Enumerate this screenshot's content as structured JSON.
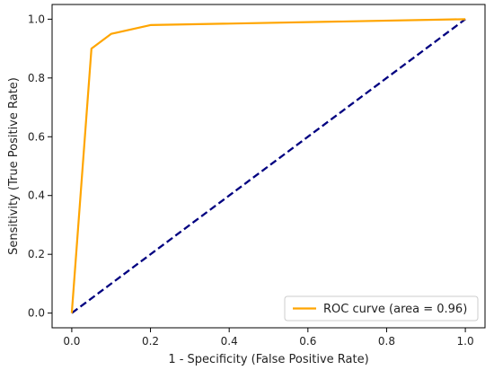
{
  "chart_data": {
    "type": "line",
    "title": "",
    "xlabel": "1 - Specificity (False Positive Rate)",
    "ylabel": "Sensitivity (True Positive Rate)",
    "xlim": [
      -0.05,
      1.05
    ],
    "ylim": [
      -0.05,
      1.05
    ],
    "grid": false,
    "legend_position": "lower-right",
    "x_ticks": [
      "0.0",
      "0.2",
      "0.4",
      "0.6",
      "0.8",
      "1.0"
    ],
    "y_ticks": [
      "0.0",
      "0.2",
      "0.4",
      "0.6",
      "0.8",
      "1.0"
    ],
    "series": [
      {
        "name": "ROC curve (area = 0.96)",
        "color": "#ffa500",
        "style": "solid",
        "x": [
          0.0,
          0.05,
          0.1,
          0.2,
          1.0
        ],
        "y": [
          0.0,
          0.9,
          0.95,
          0.98,
          1.0
        ]
      },
      {
        "color": "#000080",
        "style": "dashed",
        "x": [
          0.0,
          1.0
        ],
        "y": [
          0.0,
          1.0
        ]
      }
    ]
  }
}
